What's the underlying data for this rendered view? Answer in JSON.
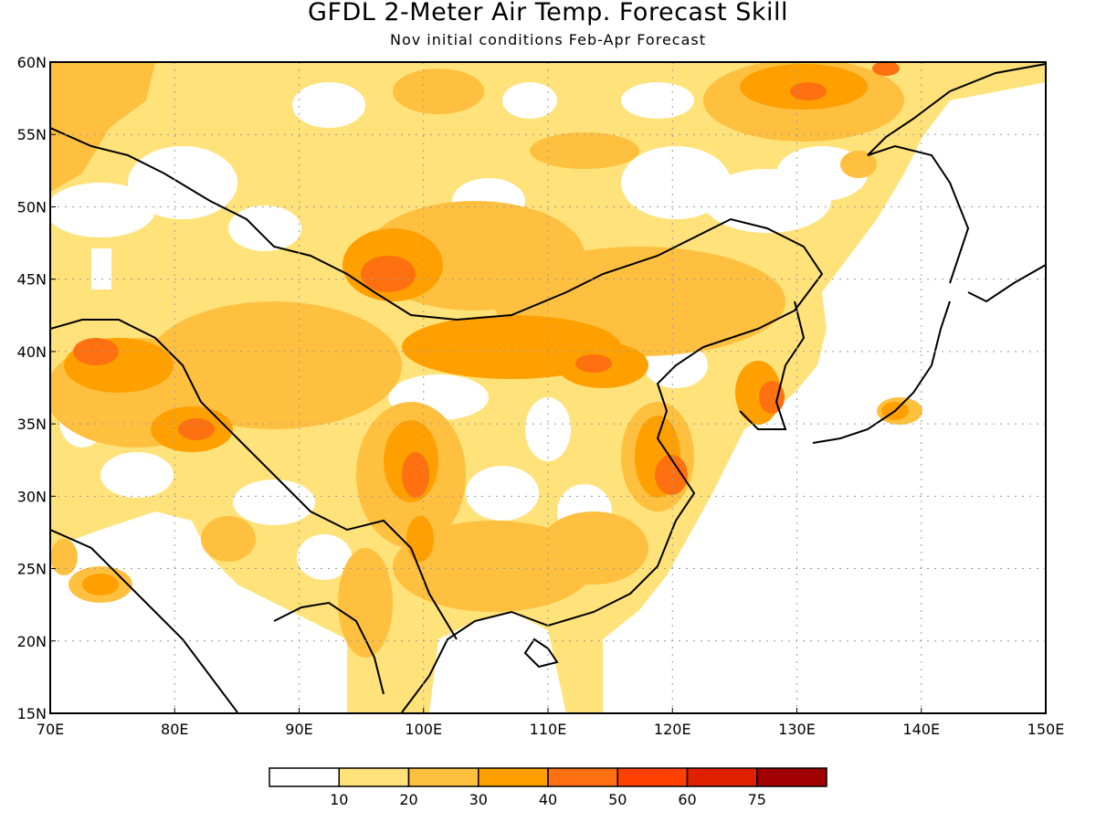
{
  "title": "GFDL 2-Meter Air Temp. Forecast Skill",
  "subtitle": "Nov initial conditions  Feb-Apr Forecast",
  "map": {
    "lon_range": [
      70,
      150
    ],
    "lat_range": [
      15,
      60
    ],
    "lon_ticks": [
      "70E",
      "80E",
      "90E",
      "100E",
      "110E",
      "120E",
      "130E",
      "140E",
      "150E"
    ],
    "lat_ticks": [
      "60N",
      "55N",
      "50N",
      "45N",
      "40N",
      "35N",
      "30N",
      "25N",
      "20N",
      "15N"
    ],
    "grid": true
  },
  "colorbar": {
    "labels": [
      "10",
      "20",
      "30",
      "40",
      "50",
      "60",
      "75"
    ],
    "colors": [
      "#ffffff",
      "#ffe27a",
      "#ffc040",
      "#ffa000",
      "#ff7010",
      "#ff4000",
      "#e02000",
      "#a00000"
    ]
  },
  "colors": {
    "c1": "#ffe27a",
    "c2": "#ffc040",
    "c3": "#ffa000",
    "c4": "#ff7010",
    "c5": "#ff4000"
  }
}
